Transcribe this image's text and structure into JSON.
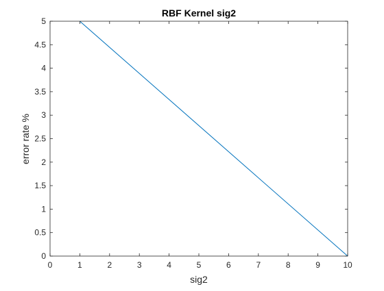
{
  "chart_data": {
    "type": "line",
    "title": "RBF Kernel sig2",
    "xlabel": "sig2",
    "ylabel": "error rate %",
    "xlim": [
      0,
      10
    ],
    "ylim": [
      0,
      5
    ],
    "xticks": [
      0,
      1,
      2,
      3,
      4,
      5,
      6,
      7,
      8,
      9,
      10
    ],
    "yticks": [
      0,
      0.5,
      1,
      1.5,
      2,
      2.5,
      3,
      3.5,
      4,
      4.5,
      5
    ],
    "grid": false,
    "box": true,
    "series": [
      {
        "x": [
          1,
          10
        ],
        "y": [
          5,
          0
        ],
        "color": "#0072BD"
      }
    ]
  }
}
